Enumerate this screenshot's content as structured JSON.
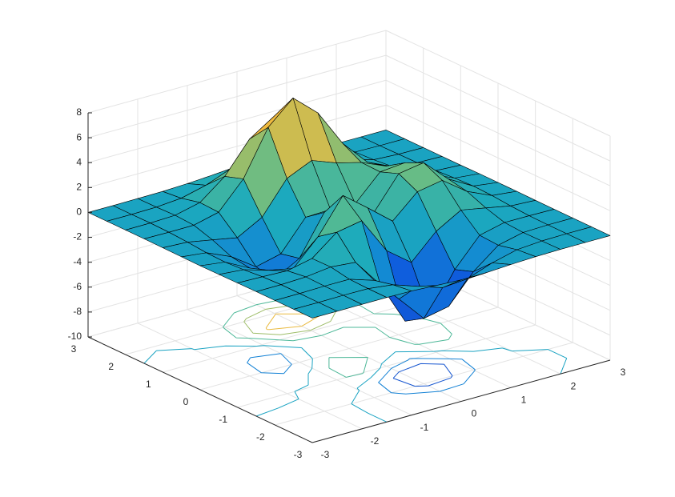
{
  "chart_data": {
    "type": "surfc",
    "colormap": "parula",
    "grid": true,
    "x": [
      -3,
      -2.5,
      -2,
      -1.5,
      -1,
      -0.5,
      0,
      0.5,
      1,
      1.5,
      2,
      2.5,
      3
    ],
    "y": [
      -3,
      -2.5,
      -2,
      -1.5,
      -1,
      -0.5,
      0,
      0.5,
      1,
      1.5,
      2,
      2.5,
      3
    ],
    "z": [
      [
        0,
        0,
        0,
        0,
        -0.03,
        -0.14,
        -0.24,
        -0.22,
        -0.11,
        -0.03,
        0,
        0,
        0
      ],
      [
        0,
        0,
        0.02,
        0,
        -0.24,
        -0.92,
        -1.57,
        -1.41,
        -0.69,
        -0.18,
        -0.03,
        0,
        0
      ],
      [
        0,
        0.01,
        0.05,
        0.05,
        -0.59,
        -2.64,
        -4.75,
        -4.34,
        -2.1,
        -0.53,
        -0.06,
        0,
        0
      ],
      [
        0,
        0.01,
        0.08,
        0.33,
        0.15,
        -2.19,
        -5.68,
        -5.76,
        -2.64,
        -0.44,
        0.04,
        0.03,
        0
      ],
      [
        -0.01,
        -0.06,
        -0.13,
        0.3,
        1.86,
        2.23,
        -0.72,
        -2.22,
        -0.27,
        0.88,
        0.5,
        0.11,
        0.01
      ],
      [
        -0.03,
        -0.2,
        -0.8,
        -1.21,
        0.8,
        3.55,
        2,
        0.39,
        2.2,
        2.56,
        1.12,
        0.24,
        0.03
      ],
      [
        -0.04,
        -0.3,
        -1.33,
        -2.77,
        -1.65,
        1.48,
        0.98,
        0.38,
        2.94,
        3.27,
        1.41,
        0.3,
        0.03
      ],
      [
        -0.03,
        -0.25,
        -1.12,
        -2.49,
        -2,
        0.39,
        0.46,
        0.38,
        2.38,
        2.56,
        1.09,
        0.23,
        0.03
      ],
      [
        -0.01,
        -0.11,
        -0.48,
        -0.86,
        0.23,
        2.8,
        3.69,
        2.94,
        2.43,
        1.58,
        0.58,
        0.12,
        0.01
      ],
      [
        0,
        -0.02,
        -0.01,
        0.48,
        2.61,
        6.2,
        8,
        6.25,
        3.25,
        1.19,
        0.29,
        0.05,
        0
      ],
      [
        0,
        0.01,
        0.08,
        0.55,
        2.1,
        4.55,
        5.85,
        4.56,
        2.21,
        0.68,
        0.13,
        0.02,
        0
      ],
      [
        0,
        0,
        0.03,
        0.19,
        0.69,
        1.47,
        1.89,
        1.47,
        0.7,
        0.21,
        0.04,
        0,
        0
      ],
      [
        0,
        0,
        0.01,
        0.03,
        0.11,
        0.23,
        0.3,
        0.23,
        0.11,
        0.03,
        0.01,
        0,
        0
      ]
    ],
    "contour_levels": [
      -6,
      -4,
      -2,
      0,
      2,
      4,
      6
    ],
    "xlim": [
      -3,
      3
    ],
    "ylim": [
      -3,
      3
    ],
    "zlim": [
      -10,
      8
    ],
    "xticks": [
      -3,
      -2,
      -1,
      0,
      1,
      2,
      3
    ],
    "yticks": [
      -3,
      -2,
      -1,
      0,
      1,
      2,
      3
    ],
    "zticks": [
      -10,
      -8,
      -6,
      -4,
      -2,
      0,
      2,
      4,
      6,
      8
    ]
  }
}
